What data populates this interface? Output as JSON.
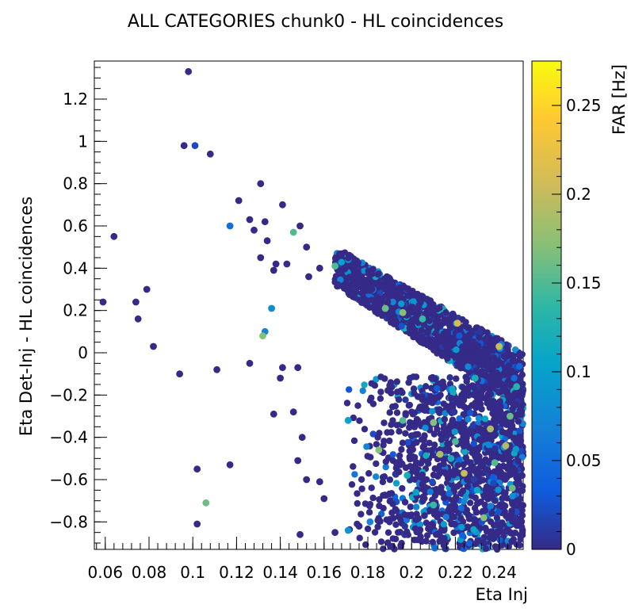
{
  "chart_data": {
    "type": "scatter",
    "title": "ALL CATEGORIES chunk0 - HL coincidences",
    "xlabel": "Eta Inj",
    "ylabel": "Eta Det-Inj - HL coincidences",
    "zlabel": "FAR [Hz]",
    "xlim": [
      0.055,
      0.251
    ],
    "ylim": [
      -0.93,
      1.38
    ],
    "zlim": [
      0,
      0.275
    ],
    "x_ticks": [
      0.06,
      0.08,
      0.1,
      0.12,
      0.14,
      0.16,
      0.18,
      0.2,
      0.22,
      0.24
    ],
    "x_tick_labels": [
      "0.06",
      "0.08",
      "0.1",
      "0.12",
      "0.14",
      "0.16",
      "0.18",
      "0.2",
      "0.22",
      "0.24"
    ],
    "y_ticks": [
      -0.8,
      -0.6,
      -0.4,
      -0.2,
      0,
      0.2,
      0.4,
      0.6,
      0.8,
      1,
      1.2
    ],
    "y_tick_labels": [
      "−0.8",
      "−0.6",
      "−0.4",
      "−0.2",
      "0",
      "0.2",
      "0.4",
      "0.6",
      "0.8",
      "1",
      "1.2"
    ],
    "z_ticks": [
      0,
      0.05,
      0.1,
      0.15,
      0.2,
      0.25
    ],
    "z_tick_labels": [
      "0",
      "0.05",
      "0.1",
      "0.15",
      "0.2",
      "0.25"
    ],
    "points": [
      {
        "x": 0.098,
        "y": 1.33,
        "far": 0.0
      },
      {
        "x": 0.096,
        "y": 0.98,
        "far": 0.0
      },
      {
        "x": 0.101,
        "y": 0.98,
        "far": 0.02
      },
      {
        "x": 0.108,
        "y": 0.94,
        "far": 0.0
      },
      {
        "x": 0.131,
        "y": 0.8,
        "far": 0.0
      },
      {
        "x": 0.121,
        "y": 0.72,
        "far": 0.0
      },
      {
        "x": 0.141,
        "y": 0.7,
        "far": 0.0
      },
      {
        "x": 0.126,
        "y": 0.63,
        "far": 0.0
      },
      {
        "x": 0.133,
        "y": 0.62,
        "far": 0.0
      },
      {
        "x": 0.117,
        "y": 0.6,
        "far": 0.05
      },
      {
        "x": 0.149,
        "y": 0.6,
        "far": 0.0
      },
      {
        "x": 0.128,
        "y": 0.58,
        "far": 0.0
      },
      {
        "x": 0.146,
        "y": 0.57,
        "far": 0.15
      },
      {
        "x": 0.064,
        "y": 0.55,
        "far": 0.0
      },
      {
        "x": 0.134,
        "y": 0.53,
        "far": 0.0
      },
      {
        "x": 0.152,
        "y": 0.5,
        "far": 0.0
      },
      {
        "x": 0.131,
        "y": 0.45,
        "far": 0.0
      },
      {
        "x": 0.138,
        "y": 0.42,
        "far": 0.0
      },
      {
        "x": 0.143,
        "y": 0.42,
        "far": 0.0
      },
      {
        "x": 0.137,
        "y": 0.39,
        "far": 0.0
      },
      {
        "x": 0.158,
        "y": 0.4,
        "far": 0.0
      },
      {
        "x": 0.153,
        "y": 0.36,
        "far": 0.0
      },
      {
        "x": 0.079,
        "y": 0.3,
        "far": 0.0
      },
      {
        "x": 0.059,
        "y": 0.24,
        "far": 0.0
      },
      {
        "x": 0.074,
        "y": 0.24,
        "far": 0.0
      },
      {
        "x": 0.136,
        "y": 0.21,
        "far": 0.08
      },
      {
        "x": 0.075,
        "y": 0.16,
        "far": 0.0
      },
      {
        "x": 0.133,
        "y": 0.1,
        "far": 0.07
      },
      {
        "x": 0.132,
        "y": 0.08,
        "far": 0.17
      },
      {
        "x": 0.082,
        "y": 0.03,
        "far": 0.0
      },
      {
        "x": 0.126,
        "y": -0.05,
        "far": 0.0
      },
      {
        "x": 0.111,
        "y": -0.08,
        "far": 0.0
      },
      {
        "x": 0.094,
        "y": -0.1,
        "far": 0.0
      },
      {
        "x": 0.141,
        "y": -0.07,
        "far": 0.0
      },
      {
        "x": 0.148,
        "y": -0.07,
        "far": 0.0
      },
      {
        "x": 0.14,
        "y": -0.12,
        "far": 0.0
      },
      {
        "x": 0.117,
        "y": -0.53,
        "far": 0.0
      },
      {
        "x": 0.102,
        "y": -0.55,
        "far": 0.0
      },
      {
        "x": 0.106,
        "y": -0.71,
        "far": 0.16
      },
      {
        "x": 0.102,
        "y": -0.81,
        "far": 0.0
      },
      {
        "x": 0.137,
        "y": -0.29,
        "far": 0.0
      },
      {
        "x": 0.146,
        "y": -0.28,
        "far": 0.0
      },
      {
        "x": 0.15,
        "y": -0.4,
        "far": 0.0
      },
      {
        "x": 0.148,
        "y": -0.51,
        "far": 0.0
      },
      {
        "x": 0.149,
        "y": -0.86,
        "far": 0.0
      },
      {
        "x": 0.152,
        "y": -0.6,
        "far": 0.0
      },
      {
        "x": 0.158,
        "y": -0.61,
        "far": 0.0
      },
      {
        "x": 0.16,
        "y": -0.69,
        "far": 0.0
      },
      {
        "x": 0.165,
        "y": -0.85,
        "far": 0.0
      },
      {
        "x": 0.171,
        "y": -0.84,
        "far": 0.09
      },
      {
        "x": 0.176,
        "y": -0.82,
        "far": 0.0
      },
      {
        "x": 0.181,
        "y": -0.8,
        "far": 0.07
      },
      {
        "x": 0.185,
        "y": -0.46,
        "far": 0.17
      },
      {
        "x": 0.196,
        "y": -0.32,
        "far": 0.15
      },
      {
        "x": 0.21,
        "y": -0.33,
        "far": 0.17
      },
      {
        "x": 0.213,
        "y": -0.48,
        "far": 0.19
      },
      {
        "x": 0.22,
        "y": -0.42,
        "far": 0.15
      },
      {
        "x": 0.196,
        "y": 0.19,
        "far": 0.17
      },
      {
        "x": 0.188,
        "y": 0.21,
        "far": 0.16
      },
      {
        "x": 0.205,
        "y": 0.16,
        "far": 0.14
      },
      {
        "x": 0.165,
        "y": 0.41,
        "far": 0.15
      },
      {
        "x": 0.236,
        "y": -0.36,
        "far": 0.19
      },
      {
        "x": 0.238,
        "y": -0.52,
        "far": 0.15
      },
      {
        "x": 0.24,
        "y": 0.03,
        "far": 0.2
      },
      {
        "x": 0.243,
        "y": -0.44,
        "far": 0.19
      },
      {
        "x": 0.246,
        "y": -0.64,
        "far": 0.16
      },
      {
        "x": 0.221,
        "y": 0.14,
        "far": 0.21
      },
      {
        "x": 0.171,
        "y": -0.32,
        "far": 0.1
      },
      {
        "x": 0.224,
        "y": -0.57,
        "far": 0.2
      },
      {
        "x": 0.233,
        "y": -0.78,
        "far": 0.17
      },
      {
        "x": 0.198,
        "y": -0.58,
        "far": 0.12
      },
      {
        "x": 0.202,
        "y": -0.66,
        "far": 0.1
      },
      {
        "x": 0.21,
        "y": -0.72,
        "far": 0.14
      },
      {
        "x": 0.218,
        "y": -0.5,
        "far": 0.12
      },
      {
        "x": 0.229,
        "y": -0.12,
        "far": 0.12
      },
      {
        "x": 0.248,
        "y": -0.16,
        "far": 0.13
      },
      {
        "x": 0.245,
        "y": -0.3,
        "far": 0.16
      },
      {
        "x": 0.23,
        "y": -0.65,
        "far": 0.11
      }
    ],
    "dense_band_note": "Remaining thousands of low-FAR points fill the band between eta_det-inj upper edge (~0.5 at 0.165 to 0.0 at 0.25) and lower edge (~-0.2 at 0.215) plus lower right triangle; generated procedurally as filler marks"
  }
}
